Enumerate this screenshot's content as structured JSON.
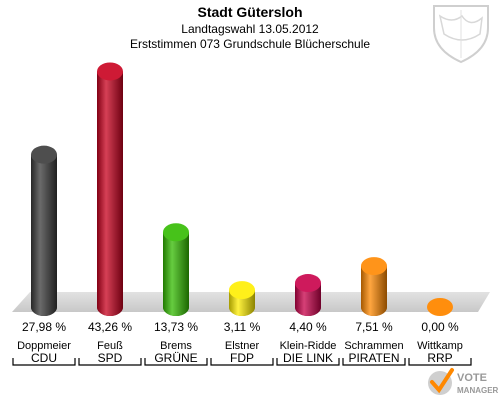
{
  "header": {
    "title": "Stadt Gütersloh",
    "subtitle": "Landtagswahl 13.05.2012",
    "subtitle2": "Erststimmen 073 Grundschule Blücherschule"
  },
  "chart_data": {
    "type": "bar",
    "title": "Stadt Gütersloh",
    "subtitle": "Landtagswahl 13.05.2012",
    "categories": [
      "CDU",
      "SPD",
      "GRÜNE",
      "FDP",
      "DIE LINKE",
      "PIRATEN",
      "RRP"
    ],
    "candidates": [
      "Doppmeier",
      "Feuß",
      "Brems",
      "Elstner",
      "Klein-Riddel",
      "Schrammen",
      "Wittkamp"
    ],
    "party_labels": [
      "CDU",
      "SPD",
      "GRÜNE",
      "FDP",
      "DIE LINK",
      "PIRATEN",
      "RRP"
    ],
    "candidate_labels": [
      "Doppmeier",
      "Feuß",
      "Brems",
      "Elstner",
      "Klein-Ridde",
      "Schrammen",
      "Wittkamp"
    ],
    "values": [
      27.98,
      43.26,
      13.73,
      3.11,
      4.4,
      7.51,
      0.0
    ],
    "value_labels": [
      "27,98 %",
      "43,26 %",
      "13,73 %",
      "3,11 %",
      "4,40 %",
      "7,51 %",
      "0,00 %"
    ],
    "colors": [
      "#3a3a3a",
      "#c8001e",
      "#33bb00",
      "#ffee00",
      "#c8004a",
      "#ff8800",
      "#ff8800"
    ],
    "ylim": [
      0,
      45
    ],
    "grid": false,
    "legend": "none"
  },
  "logo": {
    "text_line1": "VOTE",
    "text_line2": "MANAGER"
  }
}
